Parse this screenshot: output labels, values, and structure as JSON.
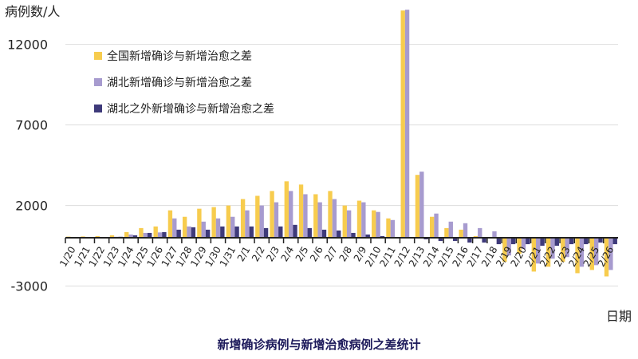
{
  "chart_data": {
    "type": "bar",
    "title": "新增确诊病例与新增治愈病例之差统计",
    "ylabel": "病例数/人",
    "xlabel": "日期",
    "ylim": [
      -3000,
      14200
    ],
    "yticks": [
      12000,
      7000,
      2000,
      -3000
    ],
    "grid": true,
    "legend": "top-left",
    "categories": [
      "1/20",
      "1/21",
      "1/22",
      "1/23",
      "1/24",
      "1/25",
      "1/26",
      "1/27",
      "1/28",
      "1/29",
      "1/30",
      "1/31",
      "2/1",
      "2/2",
      "2/3",
      "2/4",
      "2/5",
      "2/6",
      "2/7",
      "2/8",
      "2/9",
      "2/10",
      "2/11",
      "2/12",
      "2/13",
      "2/14",
      "2/15",
      "2/16",
      "2/17",
      "2/18",
      "2/19",
      "2/20",
      "2/21",
      "2/22",
      "2/23",
      "2/24",
      "2/25",
      "2/26"
    ],
    "series": [
      {
        "name": "全国新增确诊与新增治愈之差",
        "color": "#F7CC4E",
        "values": [
          70,
          80,
          100,
          150,
          350,
          600,
          700,
          1700,
          1300,
          1800,
          1900,
          2000,
          2400,
          2600,
          2900,
          3500,
          3300,
          2700,
          2900,
          2000,
          2300,
          1700,
          1200,
          14100,
          3900,
          1300,
          600,
          500,
          100,
          0,
          -1500,
          -1000,
          -2100,
          -1800,
          -1500,
          -2200,
          -2000,
          -2400
        ]
      },
      {
        "name": "湖北新增确诊与新增治愈之差",
        "color": "#A79BCF",
        "values": [
          0,
          20,
          50,
          60,
          200,
          300,
          330,
          1200,
          700,
          1000,
          1200,
          1300,
          1700,
          2000,
          2200,
          2900,
          2700,
          2200,
          2400,
          1700,
          2200,
          1600,
          1100,
          14150,
          4100,
          1500,
          1000,
          900,
          600,
          400,
          -1100,
          -700,
          -1600,
          -1300,
          -1200,
          -1800,
          -1700,
          -2000
        ]
      },
      {
        "name": "湖北之外新增确诊与新增治愈之差",
        "color": "#3E3A7A",
        "values": [
          0,
          10,
          30,
          60,
          150,
          300,
          350,
          500,
          650,
          500,
          700,
          700,
          700,
          600,
          700,
          800,
          600,
          500,
          450,
          300,
          200,
          100,
          50,
          -50,
          -100,
          -200,
          -200,
          -300,
          -300,
          -400,
          -400,
          -400,
          -500,
          -500,
          -400,
          -400,
          -300,
          -400
        ]
      }
    ]
  }
}
